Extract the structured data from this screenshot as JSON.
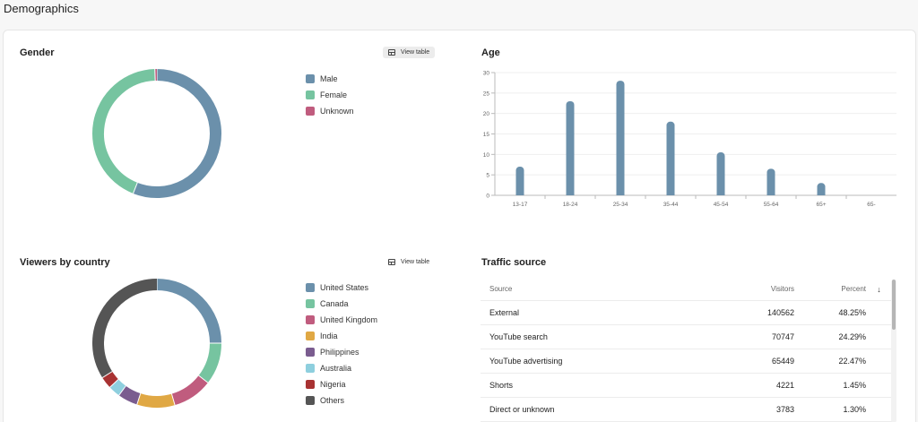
{
  "page": {
    "title": "Demographics"
  },
  "gender": {
    "title": "Gender",
    "view_table_label": "View table",
    "legend": [
      {
        "label": "Male",
        "color": "#6b90ab"
      },
      {
        "label": "Female",
        "color": "#76c4a0"
      },
      {
        "label": "Unknown",
        "color": "#c05c7e"
      }
    ]
  },
  "age": {
    "title": "Age"
  },
  "country": {
    "title": "Viewers by country",
    "view_table_label": "View table",
    "legend": [
      {
        "label": "United States",
        "color": "#6b90ab"
      },
      {
        "label": "Canada",
        "color": "#76c4a0"
      },
      {
        "label": "United Kingdom",
        "color": "#c05c7e"
      },
      {
        "label": "India",
        "color": "#e0a844"
      },
      {
        "label": "Philippines",
        "color": "#7a5c8f"
      },
      {
        "label": "Australia",
        "color": "#8ecfde"
      },
      {
        "label": "Nigeria",
        "color": "#a83232"
      },
      {
        "label": "Others",
        "color": "#555555"
      }
    ]
  },
  "traffic": {
    "title": "Traffic source",
    "columns": [
      "Source",
      "Visitors",
      "Percent"
    ],
    "sort_icon": "arrow-down-icon",
    "rows": [
      {
        "source": "External",
        "visitors": "140562",
        "percent": "48.25%"
      },
      {
        "source": "YouTube search",
        "visitors": "70747",
        "percent": "24.29%"
      },
      {
        "source": "YouTube advertising",
        "visitors": "65449",
        "percent": "22.47%"
      },
      {
        "source": "Shorts",
        "visitors": "4221",
        "percent": "1.45%"
      },
      {
        "source": "Direct or unknown",
        "visitors": "3783",
        "percent": "1.30%"
      }
    ]
  },
  "icons": {
    "view_table": "table-icon"
  },
  "chart_data": [
    {
      "type": "pie",
      "title": "Gender",
      "categories": [
        "Male",
        "Female",
        "Unknown"
      ],
      "values": [
        56,
        43.5,
        0.5
      ],
      "colors": [
        "#6b90ab",
        "#76c4a0",
        "#c05c7e"
      ],
      "donut": true
    },
    {
      "type": "bar",
      "title": "Age",
      "categories": [
        "13-17",
        "18-24",
        "25-34",
        "35-44",
        "45-54",
        "55-64",
        "65+",
        "65-"
      ],
      "values": [
        7,
        23,
        28,
        18,
        10.5,
        6.5,
        3,
        0
      ],
      "ylim": [
        0,
        30
      ],
      "yticks": [
        0,
        5,
        10,
        15,
        20,
        25,
        30
      ],
      "color": "#6b90ab",
      "grid": true
    },
    {
      "type": "pie",
      "title": "Viewers by country",
      "categories": [
        "United States",
        "Canada",
        "United Kingdom",
        "India",
        "Philippines",
        "Australia",
        "Nigeria",
        "Others"
      ],
      "values": [
        25,
        10.5,
        10,
        9.5,
        5,
        3,
        3,
        34
      ],
      "colors": [
        "#6b90ab",
        "#76c4a0",
        "#c05c7e",
        "#e0a844",
        "#7a5c8f",
        "#8ecfde",
        "#a83232",
        "#555555"
      ],
      "donut": true
    }
  ]
}
